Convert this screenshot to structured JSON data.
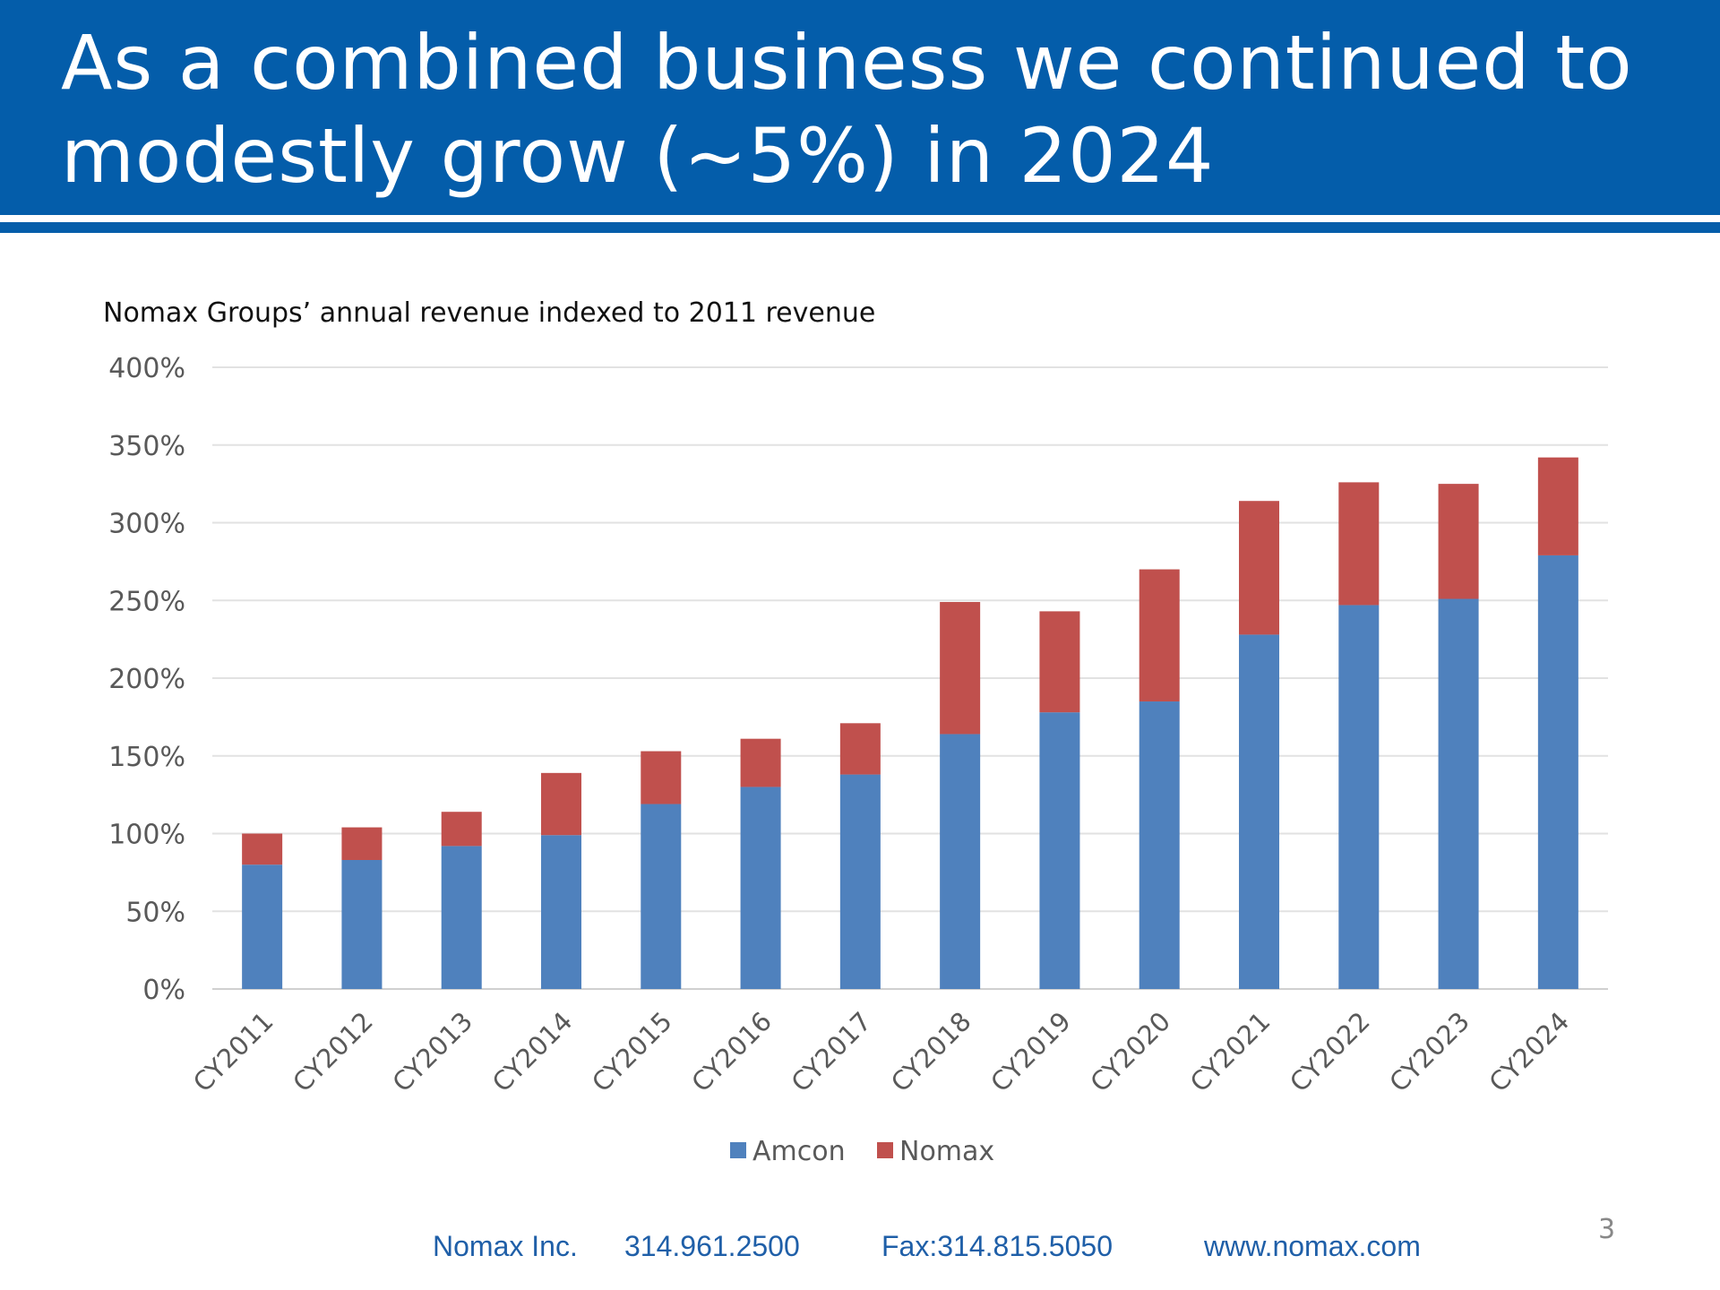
{
  "slide": {
    "title": "As a combined business we continued to modestly grow (~5%) in 2024",
    "page_number": "3"
  },
  "colors": {
    "header_bg": "#045DAA",
    "amcon": "#4F81BD",
    "nomax": "#C0504D",
    "footer_text": "#1F5FA8"
  },
  "footer": {
    "company": "Nomax Inc.",
    "phone": "314.961.2500",
    "fax": "Fax:314.815.5050",
    "website": "www.nomax.com"
  },
  "chart_data": {
    "type": "bar",
    "stacked": true,
    "title": "Nomax Groups’ annual revenue indexed to 2011 revenue",
    "categories": [
      "CY2011",
      "CY2012",
      "CY2013",
      "CY2014",
      "CY2015",
      "CY2016",
      "CY2017",
      "CY2018",
      "CY2019",
      "CY2020",
      "CY2021",
      "CY2022",
      "CY2023",
      "CY2024"
    ],
    "series": [
      {
        "name": "Amcon",
        "color": "#4F81BD",
        "values": [
          80,
          83,
          92,
          99,
          119,
          130,
          138,
          164,
          178,
          185,
          228,
          247,
          251,
          279
        ]
      },
      {
        "name": "Nomax",
        "color": "#C0504D",
        "values": [
          20,
          21,
          22,
          40,
          34,
          31,
          33,
          85,
          65,
          85,
          86,
          79,
          74,
          63
        ]
      }
    ],
    "ylim": [
      0,
      400
    ],
    "yticks": [
      "0%",
      "50%",
      "100%",
      "150%",
      "200%",
      "250%",
      "300%",
      "350%",
      "400%"
    ],
    "ytick_values": [
      0,
      50,
      100,
      150,
      200,
      250,
      300,
      350,
      400
    ],
    "grid": true,
    "legend": "bottom"
  }
}
